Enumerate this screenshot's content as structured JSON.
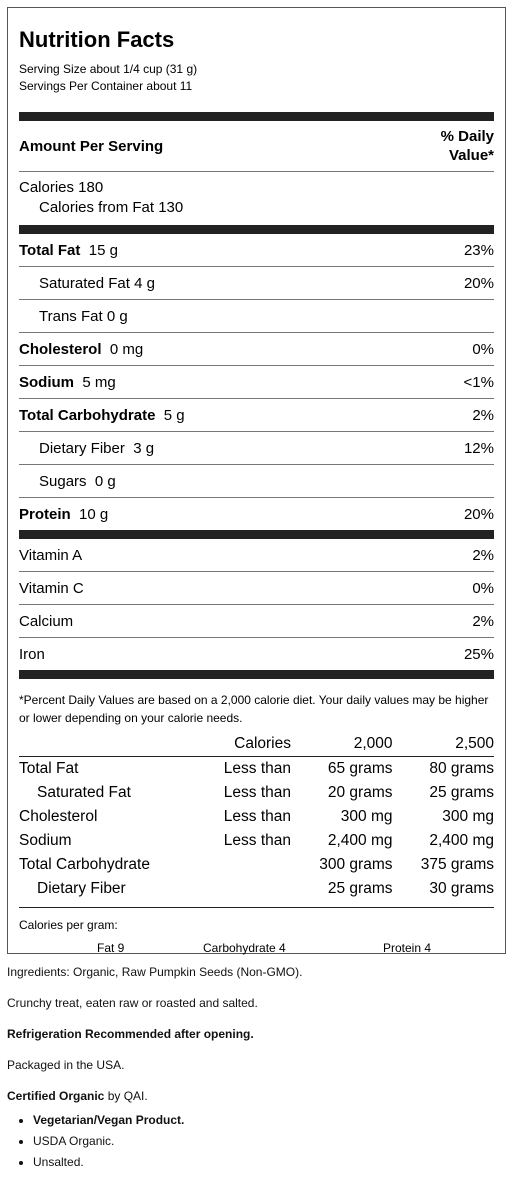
{
  "label": {
    "title": "Nutrition Facts",
    "serving_size": "Serving Size about 1/4 cup (31 g)",
    "servings_per_container": "Servings Per Container about 11",
    "amount_per_serving": "Amount Per Serving",
    "daily_value_line1": "% Daily",
    "daily_value_line2": "Value*",
    "calories": "Calories 180",
    "calories_from_fat": "Calories from Fat 130",
    "nutrients": [
      {
        "name": "Total Fat",
        "amount": "15 g",
        "dv": "23%"
      },
      {
        "name": "Saturated Fat",
        "amount": "4 g",
        "dv": "20%"
      },
      {
        "name": "Trans Fat",
        "amount": "0 g",
        "dv": ""
      },
      {
        "name": "Cholesterol",
        "amount": "0 mg",
        "dv": "0%"
      },
      {
        "name": "Sodium",
        "amount": "5 mg",
        "dv": "<1%"
      },
      {
        "name": "Total Carbohydrate",
        "amount": "5 g",
        "dv": "2%"
      },
      {
        "name": "Dietary Fiber",
        "amount": "3 g",
        "dv": "12%"
      },
      {
        "name": "Sugars",
        "amount": "0 g",
        "dv": ""
      },
      {
        "name": "Protein",
        "amount": "10 g",
        "dv": "20%"
      }
    ],
    "vitamins": [
      {
        "name": "Vitamin A",
        "dv": "2%"
      },
      {
        "name": "Vitamin C",
        "dv": "0%"
      },
      {
        "name": "Calcium",
        "dv": "2%"
      },
      {
        "name": "Iron",
        "dv": "25%"
      }
    ],
    "footnote": "*Percent Daily Values are based on a 2,000 calorie diet. Your daily values may be higher or lower depending on your calorie needs.",
    "dv_table": {
      "header": [
        "",
        "Calories",
        "2,000",
        "2,500"
      ],
      "rows": [
        [
          "Total Fat",
          "Less than",
          "65 grams",
          "80 grams"
        ],
        [
          "Saturated Fat",
          "Less than",
          "20 grams",
          "25 grams"
        ],
        [
          "Cholesterol",
          "Less than",
          "300 mg",
          "300 mg"
        ],
        [
          "Sodium",
          "Less than",
          "2,400 mg",
          "2,400 mg"
        ],
        [
          "Total Carbohydrate",
          "",
          "300 grams",
          "375 grams"
        ],
        [
          "Dietary Fiber",
          "",
          "25 grams",
          "30 grams"
        ]
      ]
    },
    "calories_per_gram": "Calories per gram:",
    "cpg": [
      "Fat 9",
      "Carbohydrate 4",
      "Protein 4"
    ]
  },
  "info": {
    "ingredients": "Ingredients: Organic, Raw Pumpkin Seeds (Non-GMO).",
    "description": "Crunchy treat, eaten raw or roasted and salted.",
    "refrigeration": "Refrigeration Recommended after opening.",
    "packaged": "Packaged in the USA.",
    "certified_bold": "Certified Organic",
    "certified_rest": " by QAI.",
    "bullets": [
      "Vegetarian/Vegan Product.",
      "USDA Organic.",
      "Unsalted."
    ]
  }
}
